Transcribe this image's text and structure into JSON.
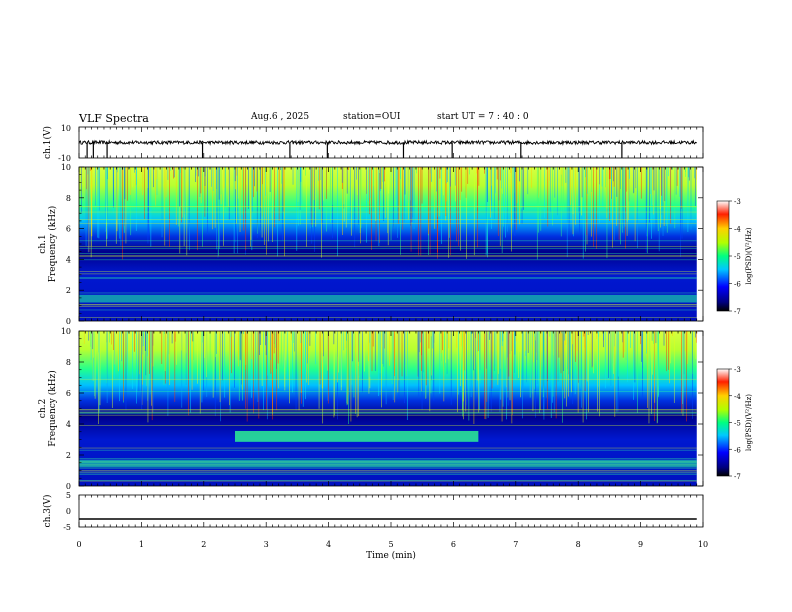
{
  "header": {
    "title": "VLF Spectra",
    "date": "Aug.6 , 2025",
    "station": "station=OUI",
    "start": "start UT = 7 : 40 : 0"
  },
  "chart_data": [
    {
      "type": "line",
      "ylabel": "ch.1(V)",
      "ylim": [
        -10,
        10
      ],
      "y_ticks": [
        "10",
        "-10"
      ],
      "description_values": {
        "baseline": 0,
        "spike_min": -10
      }
    },
    {
      "type": "heatmap",
      "ylabel": "ch.1\nFrequency (kHz)",
      "ylim": [
        0,
        10
      ],
      "y_ticks": [
        "0",
        "2",
        "4",
        "6",
        "8",
        "10"
      ],
      "colorbar": {
        "label": "log(PSD)(V²/Hz)",
        "range": [
          -7,
          -3
        ],
        "ticks": [
          "-3",
          "-4",
          "-5",
          "-6",
          "-7"
        ]
      }
    },
    {
      "type": "heatmap",
      "ylabel": "ch.2\nFrequency (kHz)",
      "ylim": [
        0,
        10
      ],
      "y_ticks": [
        "0",
        "2",
        "4",
        "6",
        "8",
        "10"
      ],
      "band": {
        "x_start": 2.5,
        "x_end": 6.4,
        "freq_khz": 3.2
      },
      "colorbar": {
        "label": "log(PSD)(V²/Hz)",
        "range": [
          -7,
          -3
        ],
        "ticks": [
          "-3",
          "-4",
          "-5",
          "-6",
          "-7"
        ]
      }
    },
    {
      "type": "line",
      "ylabel": "ch.3(V)",
      "ylim": [
        -5,
        5
      ],
      "y_ticks": [
        "5",
        "0",
        "-5"
      ],
      "values": [
        -2.5,
        -2.5
      ]
    }
  ],
  "xaxis": {
    "label": "Time (min)",
    "range": [
      0,
      10
    ],
    "ticks": [
      "0",
      "1",
      "2",
      "3",
      "4",
      "5",
      "6",
      "7",
      "8",
      "9",
      "10"
    ]
  }
}
